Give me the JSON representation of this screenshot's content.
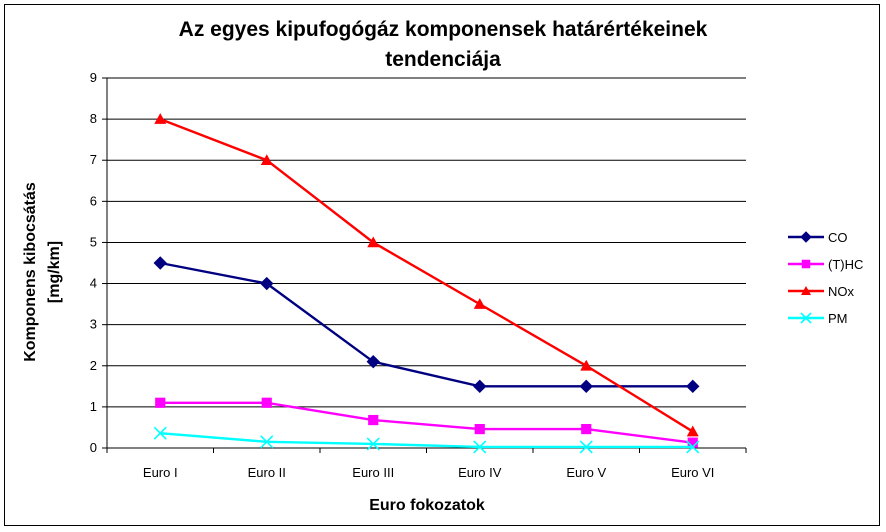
{
  "chart_data": {
    "type": "line",
    "title_line1": "Az egyes kipufogógáz komponensek határértékeinek",
    "title_line2": "tendenciája",
    "xlabel": "Euro fokozatok",
    "ylabel_line1": "Komponens kibocsátás",
    "ylabel_line2": "[mg/km]",
    "categories": [
      "Euro I",
      "Euro II",
      "Euro III",
      "Euro IV",
      "Euro V",
      "Euro VI"
    ],
    "ylim": [
      0,
      9
    ],
    "yticks": [
      "0",
      "1",
      "2",
      "3",
      "4",
      "5",
      "6",
      "7",
      "8",
      "9"
    ],
    "grid": true,
    "legend_position": "right",
    "series": [
      {
        "name": "CO",
        "values": [
          4.5,
          4.0,
          2.1,
          1.5,
          1.5,
          1.5
        ],
        "color": "#000080",
        "marker": "diamond"
      },
      {
        "name": "(T)HC",
        "values": [
          1.1,
          1.1,
          0.68,
          0.46,
          0.46,
          0.13
        ],
        "color": "#ff00ff",
        "marker": "square"
      },
      {
        "name": "NOx",
        "values": [
          8.0,
          7.0,
          5.0,
          3.5,
          2.0,
          0.4
        ],
        "color": "#ff0000",
        "marker": "triangle"
      },
      {
        "name": "PM",
        "values": [
          0.36,
          0.15,
          0.1,
          0.025,
          0.025,
          0.025
        ],
        "color": "#00ffff",
        "marker": "x"
      }
    ]
  }
}
